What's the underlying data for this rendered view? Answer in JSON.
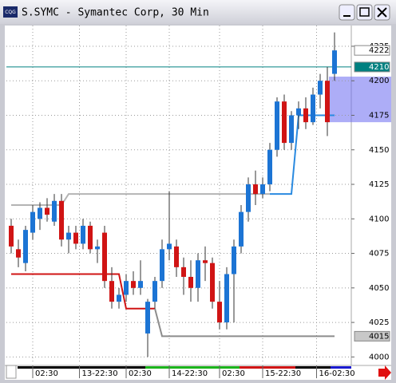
{
  "window": {
    "title": "S.SYMC - Symantec Corp, 30 Min",
    "icon": "CQG"
  },
  "chart_data": {
    "type": "candlestick",
    "open": [
      4095,
      4078,
      4068,
      4090,
      4100,
      4108,
      4098,
      4113,
      4085,
      4090,
      4082,
      4095,
      4078,
      4090,
      4055,
      4040,
      4045,
      4055,
      4050,
      4017,
      4040,
      4055,
      4078,
      4080,
      4065,
      4058,
      4050,
      4070,
      4068,
      4040,
      4025,
      4060,
      4080,
      4105,
      4125,
      4118,
      4125,
      4150,
      4185,
      4155,
      4175,
      4180,
      4170,
      4190,
      4200,
      4205
    ],
    "high": [
      4100,
      4085,
      4095,
      4110,
      4112,
      4115,
      4118,
      4118,
      4095,
      4095,
      4100,
      4098,
      4085,
      4095,
      4065,
      4050,
      4060,
      4062,
      4070,
      4042,
      4058,
      4085,
      4120,
      4085,
      4072,
      4070,
      4075,
      4080,
      4072,
      4055,
      4065,
      4085,
      4110,
      4130,
      4135,
      4130,
      4155,
      4188,
      4190,
      4178,
      4185,
      4188,
      4195,
      4205,
      4210,
      4235
    ],
    "low": [
      4075,
      4065,
      4062,
      4085,
      4092,
      4098,
      4095,
      4080,
      4075,
      4078,
      4078,
      4075,
      4068,
      4050,
      4035,
      4035,
      4040,
      4045,
      4045,
      4000,
      4035,
      4050,
      4070,
      4058,
      4045,
      4040,
      4040,
      4055,
      4035,
      4020,
      4020,
      4025,
      4075,
      4098,
      4110,
      4115,
      4120,
      4145,
      4150,
      4150,
      4165,
      4165,
      4168,
      4180,
      4160,
      4200
    ],
    "close": [
      4080,
      4072,
      4092,
      4105,
      4108,
      4103,
      4113,
      4085,
      4090,
      4082,
      4095,
      4078,
      4080,
      4055,
      4040,
      4045,
      4055,
      4050,
      4055,
      4040,
      4055,
      4078,
      4082,
      4065,
      4058,
      4050,
      4070,
      4068,
      4040,
      4025,
      4060,
      4080,
      4105,
      4125,
      4118,
      4125,
      4150,
      4185,
      4155,
      4175,
      4180,
      4170,
      4190,
      4200,
      4170,
      4222
    ],
    "up_color": "#1c74d4",
    "down_color": "#d01414",
    "indicator_lines": [
      {
        "color": "#b4b4b4",
        "x": [
          0,
          7,
          8,
          36
        ],
        "values": [
          4110,
          4110,
          4118,
          4118
        ]
      },
      {
        "color": "#2a8ae0",
        "x": [
          36,
          39,
          40,
          45
        ],
        "values": [
          4118,
          4118,
          4175,
          4175
        ]
      },
      {
        "color": "#d01414",
        "x": [
          0,
          15,
          16,
          20
        ],
        "values": [
          4060,
          4060,
          4035,
          4035
        ]
      },
      {
        "color": "#8c8c8c",
        "x": [
          20,
          21,
          45
        ],
        "values": [
          4035,
          4015,
          4015
        ]
      }
    ],
    "ylim": [
      3995,
      4240
    ],
    "yticks": [
      4000,
      4025,
      4050,
      4075,
      4100,
      4125,
      4150,
      4175,
      4200,
      4225
    ],
    "xticks": [
      {
        "value": 3,
        "label": "02:30"
      },
      {
        "value": 9.5,
        "label": "13-22:30"
      },
      {
        "value": 16,
        "label": "02:30"
      },
      {
        "value": 22,
        "label": "14-22:30"
      },
      {
        "value": 29,
        "label": "02:30"
      },
      {
        "value": 35,
        "label": "15-22:30"
      },
      {
        "value": 42.5,
        "label": "16-02:30"
      }
    ],
    "markers": [
      {
        "value": 4222,
        "color": "#ffffff",
        "text_color": "#000000"
      },
      {
        "value": 4210,
        "color": "#008080",
        "text_color": "#ffffff",
        "line": true
      },
      {
        "value": 4015,
        "color": "#c8c8c8",
        "text_color": "#000000"
      }
    ],
    "zone": {
      "from": 4170,
      "to": 4203,
      "color": "#6a6af0"
    },
    "grid": true
  }
}
